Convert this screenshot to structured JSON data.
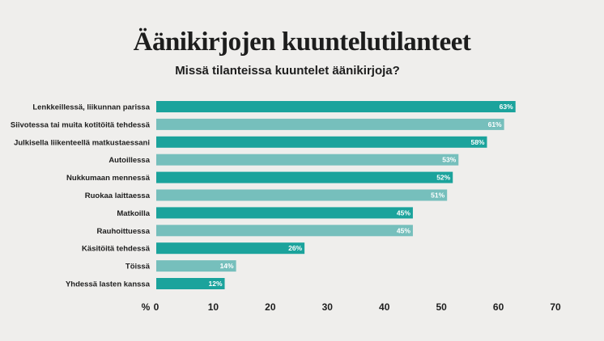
{
  "title": "Äänikirjojen kuuntelutilanteet",
  "subtitle": "Missä tilanteissa kuuntelet äänikirjoja?",
  "chart_data": {
    "type": "bar",
    "orientation": "horizontal",
    "title": "Äänikirjojen kuuntelutilanteet",
    "subtitle": "Missä tilanteissa kuuntelet äänikirjoja?",
    "xlabel": "%",
    "xlim": [
      0,
      70
    ],
    "xticks": [
      0,
      10,
      20,
      30,
      40,
      50,
      60,
      70
    ],
    "grid": false,
    "legend": "none",
    "categories": [
      "Lenkkeillessä, liikunnan parissa",
      "Siivotessa tai muita kotitöitä tehdessä",
      "Julkisella liikenteellä matkustaessani",
      "Autoillessa",
      "Nukkumaan mennessä",
      "Ruokaa laittaessa",
      "Matkoilla",
      "Rauhoittuessa",
      "Käsitöitä tehdessä",
      "Töissä",
      "Yhdessä lasten kanssa"
    ],
    "values": [
      63,
      61,
      58,
      53,
      52,
      51,
      45,
      45,
      26,
      14,
      12
    ],
    "value_labels": [
      "63%",
      "61%",
      "58%",
      "53%",
      "52%",
      "51%",
      "45%",
      "45%",
      "26%",
      "14%",
      "12%"
    ],
    "colors": {
      "dark": "#1ba39c",
      "light": "#76bfbc"
    },
    "bar_color_pattern": [
      "dark",
      "light",
      "dark",
      "light",
      "dark",
      "light",
      "dark",
      "light",
      "dark",
      "light",
      "dark"
    ]
  }
}
